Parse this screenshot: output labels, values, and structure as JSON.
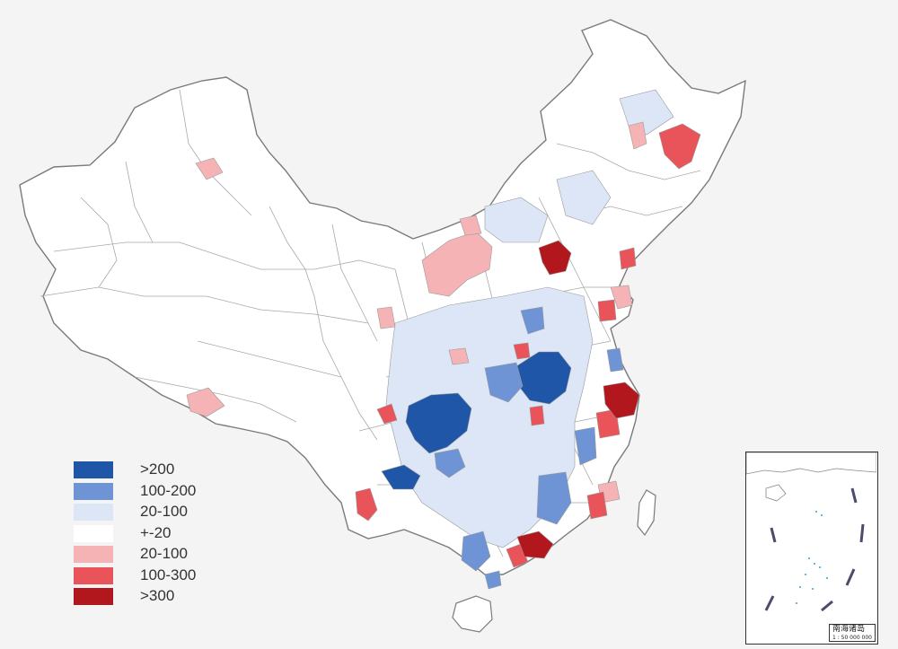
{
  "legend": {
    "items": [
      {
        "label": ">200",
        "color": "#1f56a8"
      },
      {
        "label": "100-200",
        "color": "#6f94d6"
      },
      {
        "label": "20-100",
        "color": "#dde6f6"
      },
      {
        "label": "+-20",
        "color": "#ffffff"
      },
      {
        "label": "20-100",
        "color": "#f6b3b5"
      },
      {
        "label": "100-300",
        "color": "#e9535a"
      },
      {
        "label": ">300",
        "color": "#b3171e"
      }
    ]
  },
  "inset": {
    "title": "南海诸岛",
    "scale": "1 : 50 000 000"
  },
  "map": {
    "background": "#f4f4f4",
    "land_fill": "#ffffff",
    "border_color": "#9a9a9a"
  }
}
